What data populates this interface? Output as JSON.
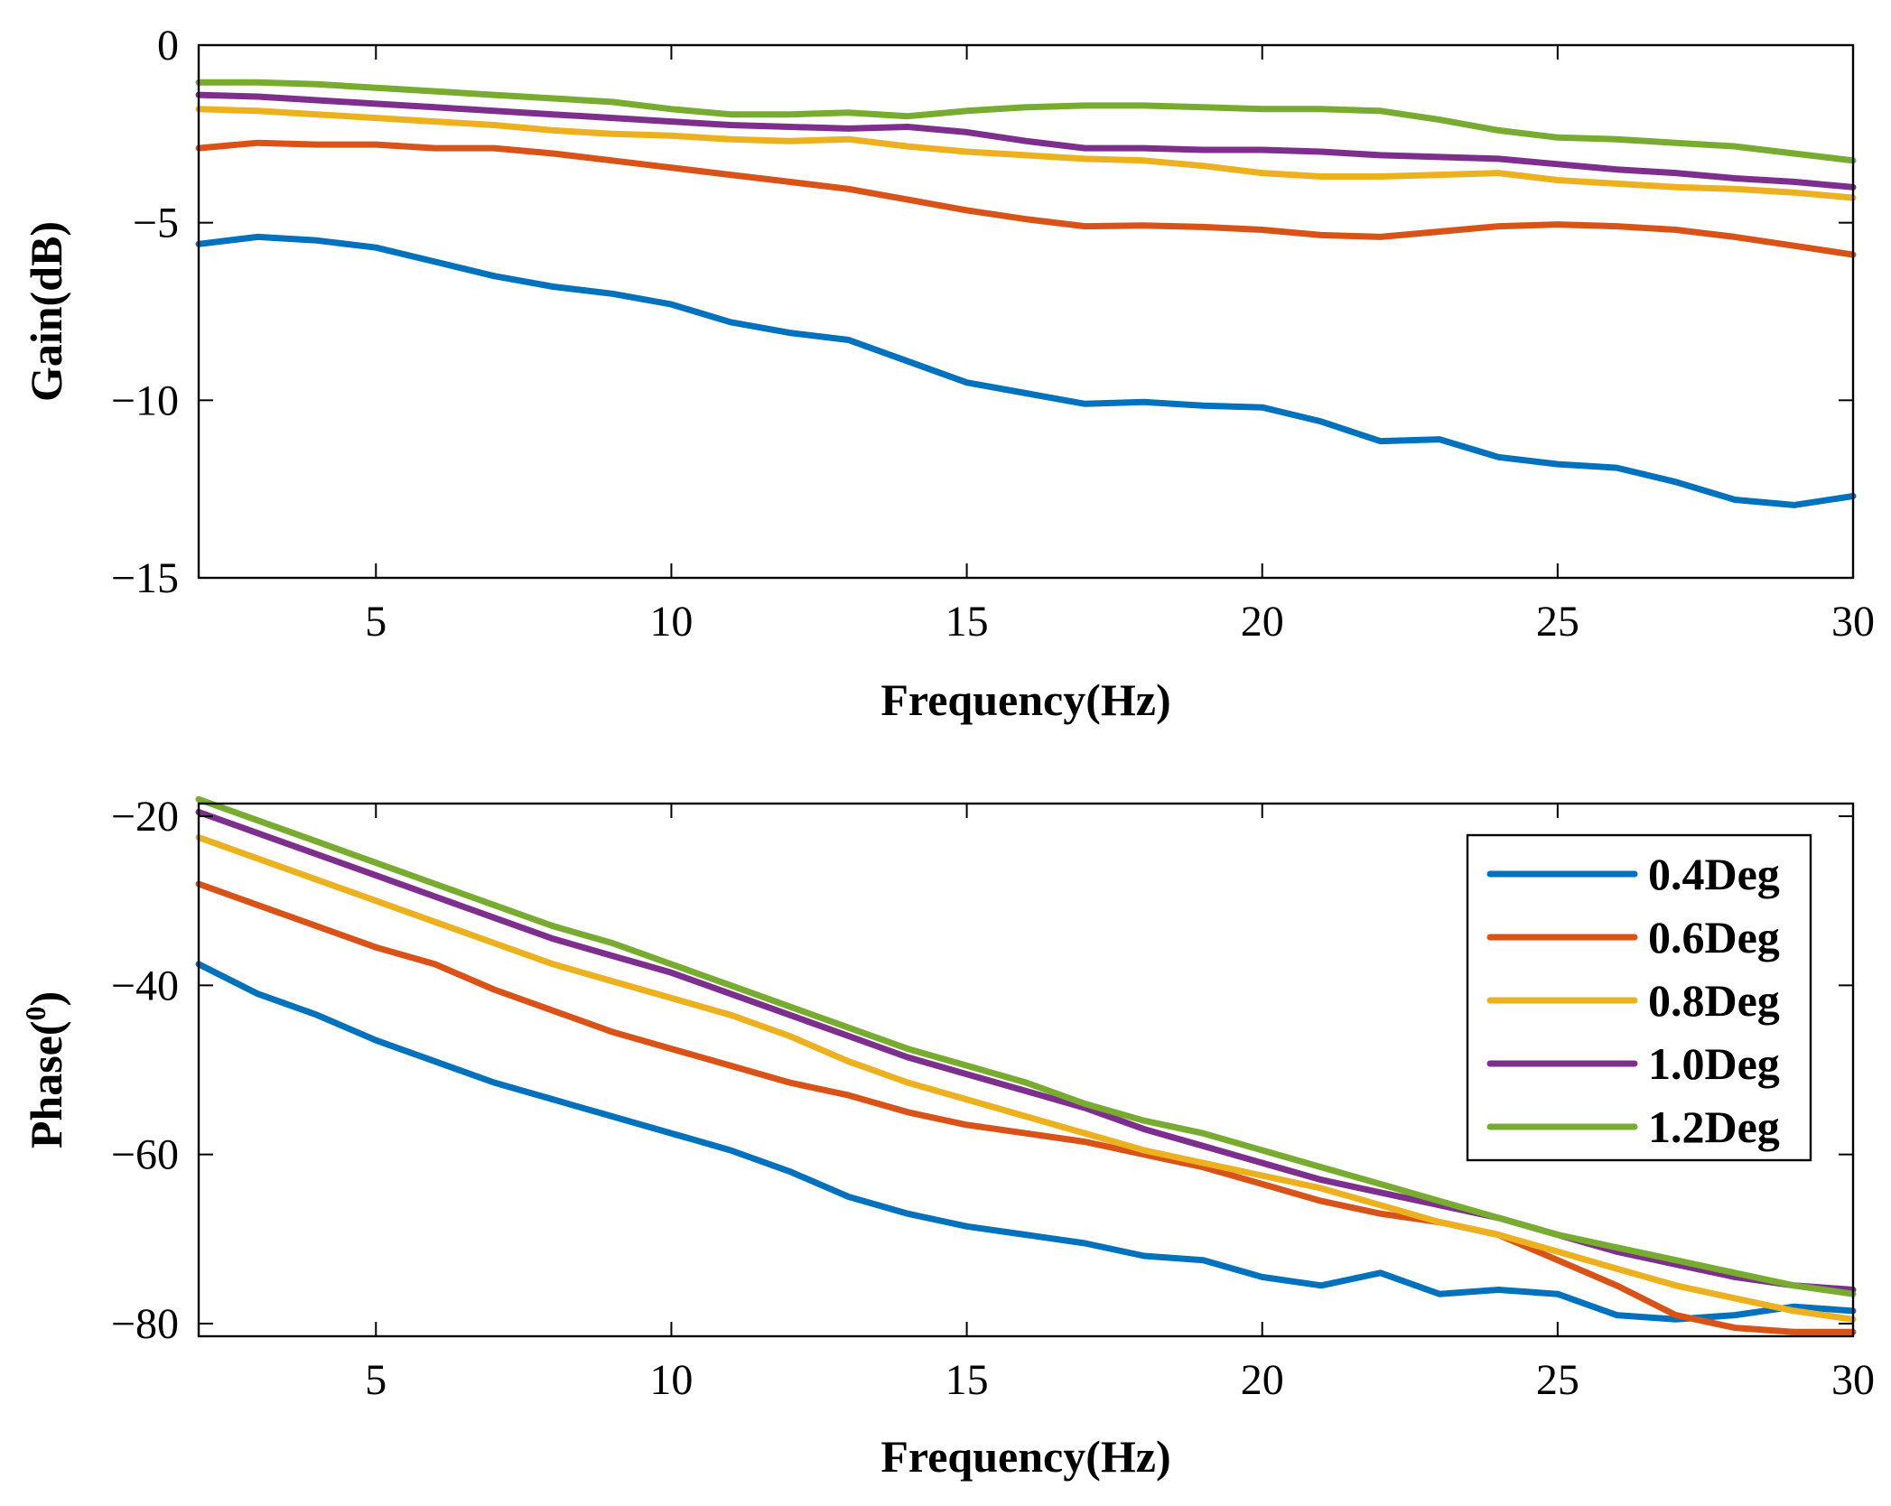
{
  "chart_data": [
    {
      "type": "line",
      "id": "gain",
      "xlabel": "Frequency(Hz)",
      "ylabel": "Gain(dB)",
      "xlim": [
        2,
        30
      ],
      "ylim": [
        -15,
        0
      ],
      "xticks": [
        5,
        10,
        15,
        20,
        25,
        30
      ],
      "yticks": [
        0,
        -5,
        -10,
        -15
      ],
      "ytick_labels": [
        "0",
        "−5",
        "−10",
        "−15"
      ],
      "x": [
        2,
        3,
        4,
        5,
        6,
        7,
        8,
        9,
        10,
        11,
        12,
        13,
        14,
        15,
        16,
        17,
        18,
        19,
        20,
        21,
        22,
        23,
        24,
        25,
        26,
        27,
        28,
        29,
        30
      ],
      "series": [
        {
          "name": "0.4Deg",
          "color": "#0072BD",
          "values": [
            -5.6,
            -5.4,
            -5.5,
            -5.7,
            -6.1,
            -6.5,
            -6.8,
            -7.0,
            -7.3,
            -7.8,
            -8.1,
            -8.3,
            -8.9,
            -9.5,
            -9.8,
            -10.1,
            -10.05,
            -10.15,
            -10.2,
            -10.6,
            -11.15,
            -11.1,
            -11.6,
            -11.8,
            -11.9,
            -12.3,
            -12.8,
            -12.95,
            -12.7
          ]
        },
        {
          "name": "0.6Deg",
          "color": "#D95319",
          "values": [
            -2.9,
            -2.75,
            -2.8,
            -2.8,
            -2.9,
            -2.9,
            -3.05,
            -3.25,
            -3.45,
            -3.65,
            -3.85,
            -4.05,
            -4.35,
            -4.65,
            -4.9,
            -5.1,
            -5.08,
            -5.12,
            -5.2,
            -5.35,
            -5.4,
            -5.25,
            -5.1,
            -5.05,
            -5.1,
            -5.2,
            -5.4,
            -5.65,
            -5.9
          ]
        },
        {
          "name": "0.8Deg",
          "color": "#EDB120",
          "values": [
            -1.8,
            -1.85,
            -1.95,
            -2.05,
            -2.15,
            -2.25,
            -2.4,
            -2.5,
            -2.55,
            -2.65,
            -2.7,
            -2.65,
            -2.85,
            -3.0,
            -3.1,
            -3.2,
            -3.25,
            -3.4,
            -3.6,
            -3.7,
            -3.7,
            -3.65,
            -3.6,
            -3.8,
            -3.9,
            -4.0,
            -4.05,
            -4.15,
            -4.3
          ]
        },
        {
          "name": "1.0Deg",
          "color": "#7E2F8E",
          "values": [
            -1.4,
            -1.45,
            -1.55,
            -1.65,
            -1.75,
            -1.85,
            -1.95,
            -2.05,
            -2.15,
            -2.25,
            -2.3,
            -2.35,
            -2.3,
            -2.45,
            -2.7,
            -2.9,
            -2.9,
            -2.95,
            -2.95,
            -3.0,
            -3.1,
            -3.15,
            -3.2,
            -3.35,
            -3.5,
            -3.6,
            -3.75,
            -3.85,
            -4.0
          ]
        },
        {
          "name": "1.2Deg",
          "color": "#77AC30",
          "values": [
            -1.05,
            -1.05,
            -1.1,
            -1.2,
            -1.3,
            -1.4,
            -1.5,
            -1.6,
            -1.8,
            -1.95,
            -1.95,
            -1.9,
            -2.0,
            -1.85,
            -1.75,
            -1.7,
            -1.7,
            -1.75,
            -1.8,
            -1.8,
            -1.85,
            -2.1,
            -2.4,
            -2.6,
            -2.65,
            -2.75,
            -2.85,
            -3.05,
            -3.25
          ]
        }
      ]
    },
    {
      "type": "line",
      "id": "phase",
      "xlabel": "Frequency(Hz)",
      "ylabel": "Phase(",
      "ylabel_sup": "0",
      "ylabel_end": ")",
      "xlim": [
        2,
        30
      ],
      "ylim": [
        -81.5,
        -18.5
      ],
      "xticks": [
        5,
        10,
        15,
        20,
        25,
        30
      ],
      "yticks": [
        -20,
        -40,
        -60,
        -80
      ],
      "ytick_labels": [
        "−20",
        "−40",
        "−60",
        "−80"
      ],
      "legend": "top-right",
      "x": [
        2,
        3,
        4,
        5,
        6,
        7,
        8,
        9,
        10,
        11,
        12,
        13,
        14,
        15,
        16,
        17,
        18,
        19,
        20,
        21,
        22,
        23,
        24,
        25,
        26,
        27,
        28,
        29,
        30
      ],
      "series": [
        {
          "name": "0.4Deg",
          "color": "#0072BD",
          "values": [
            -37.5,
            -41,
            -43.5,
            -46.5,
            -49,
            -51.5,
            -53.5,
            -55.5,
            -57.5,
            -59.5,
            -62,
            -65,
            -67,
            -68.5,
            -69.5,
            -70.5,
            -72,
            -72.5,
            -74.5,
            -75.5,
            -74,
            -76.5,
            -76,
            -76.5,
            -79,
            -79.5,
            -79,
            -78,
            -78.5
          ]
        },
        {
          "name": "0.6Deg",
          "color": "#D95319",
          "values": [
            -28,
            -30.5,
            -33,
            -35.5,
            -37.5,
            -40.5,
            -43,
            -45.5,
            -47.5,
            -49.5,
            -51.5,
            -53,
            -55,
            -56.5,
            -57.5,
            -58.5,
            -60,
            -61.5,
            -63.5,
            -65.5,
            -67,
            -68,
            -69.5,
            -72.5,
            -75.5,
            -79,
            -80.5,
            -81,
            -81
          ]
        },
        {
          "name": "0.8Deg",
          "color": "#EDB120",
          "values": [
            -22.5,
            -25,
            -27.5,
            -30,
            -32.5,
            -35,
            -37.5,
            -39.5,
            -41.5,
            -43.5,
            -46,
            -49,
            -51.5,
            -53.5,
            -55.5,
            -57.5,
            -59.5,
            -61,
            -62.5,
            -64,
            -66,
            -68,
            -69.5,
            -71.5,
            -73.5,
            -75.5,
            -77,
            -78.5,
            -79.5
          ]
        },
        {
          "name": "1.0Deg",
          "color": "#7E2F8E",
          "values": [
            -19.5,
            -22,
            -24.5,
            -27,
            -29.5,
            -32,
            -34.5,
            -36.5,
            -38.5,
            -41,
            -43.5,
            -46,
            -48.5,
            -50.5,
            -52.5,
            -54.5,
            -57,
            -59,
            -61,
            -63,
            -64.5,
            -66,
            -67.5,
            -69.5,
            -71.5,
            -73,
            -74.5,
            -75.5,
            -76
          ]
        },
        {
          "name": "1.2Deg",
          "color": "#77AC30",
          "values": [
            -18,
            -20.5,
            -23,
            -25.5,
            -28,
            -30.5,
            -33,
            -35,
            -37.5,
            -40,
            -42.5,
            -45,
            -47.5,
            -49.5,
            -51.5,
            -54,
            -56,
            -57.5,
            -59.5,
            -61.5,
            -63.5,
            -65.5,
            -67.5,
            -69.5,
            -71,
            -72.5,
            -74,
            -75.5,
            -76.5
          ]
        }
      ]
    }
  ]
}
